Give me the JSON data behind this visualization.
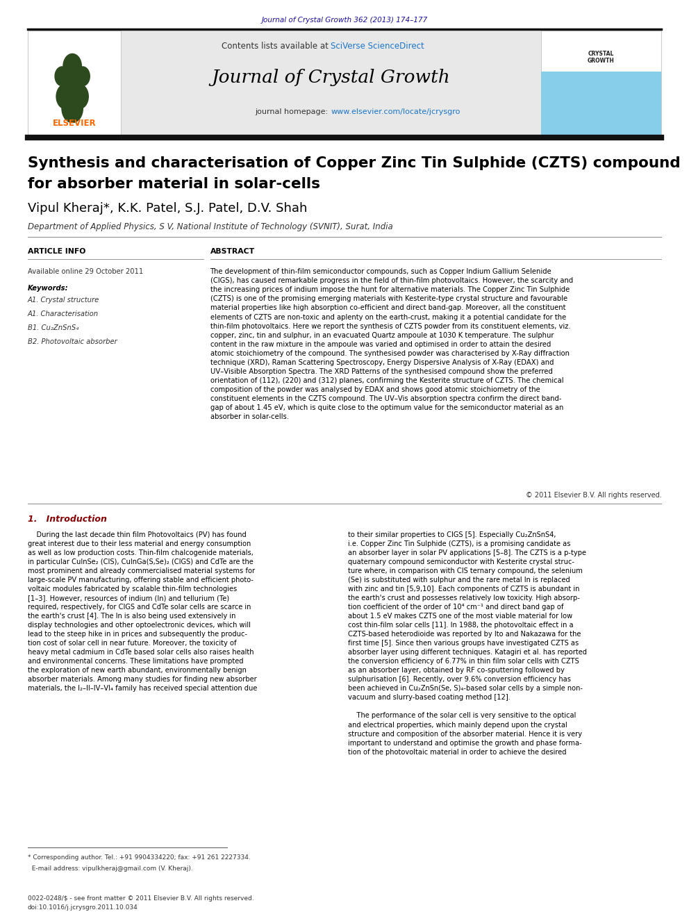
{
  "page_width": 9.92,
  "page_height": 13.23,
  "background_color": "#ffffff",
  "top_journal_ref": "Journal of Crystal Growth 362 (2013) 174–177",
  "top_journal_ref_color": "#1a0dab",
  "header_bg_color": "#e8e8e8",
  "contents_text": "Contents lists available at ",
  "sciverse_text": "SciVerse ScienceDirect",
  "sciverse_color": "#1a75cf",
  "journal_name": "Journal of Crystal Growth",
  "journal_homepage_label": "journal homepage: ",
  "journal_url": "www.elsevier.com/locate/jcrysgro",
  "journal_url_color": "#1a75cf",
  "elsevier_color": "#ff6600",
  "thick_bar_color": "#111111",
  "crystal_growth_sidebar_bg": "#87ceeb",
  "paper_title_line1": "Synthesis and characterisation of Copper Zinc Tin Sulphide (CZTS) compound",
  "paper_title_line2": "for absorber material in solar-cells",
  "paper_title_color": "#000000",
  "paper_title_fontsize": 15.5,
  "authors": "Vipul Kheraj*, K.K. Patel, S.J. Patel, D.V. Shah",
  "authors_fontsize": 13,
  "affiliation": "Department of Applied Physics, S V, National Institute of Technology (SVNIT), Surat, India",
  "affiliation_fontsize": 8.5,
  "article_info_header": "ARTICLE INFO",
  "abstract_header": "ABSTRACT",
  "available_online": "Available online 29 October 2011",
  "keywords_label": "Keywords:",
  "keywords": [
    "A1. Crystal structure",
    "A1. Characterisation",
    "B1. Cu₂ZnSnS₄",
    "B2. Photovoltaic absorber"
  ],
  "abstract_text": "The development of thin-film semiconductor compounds, such as Copper Indium Gallium Selenide\n(CIGS), has caused remarkable progress in the field of thin-film photovoltaics. However, the scarcity and\nthe increasing prices of indium impose the hunt for alternative materials. The Copper Zinc Tin Sulphide\n(CZTS) is one of the promising emerging materials with Kesterite-type crystal structure and favourable\nmaterial properties like high absorption co-efficient and direct band-gap. Moreover, all the constituent\nelements of CZTS are non-toxic and aplenty on the earth-crust, making it a potential candidate for the\nthin-film photovoltaics. Here we report the synthesis of CZTS powder from its constituent elements, viz.\ncopper, zinc, tin and sulphur, in an evacuated Quartz ampoule at 1030 K temperature. The sulphur\ncontent in the raw mixture in the ampoule was varied and optimised in order to attain the desired\natomic stoichiometry of the compound. The synthesised powder was characterised by X-Ray diffraction\ntechnique (XRD), Raman Scattering Spectroscopy, Energy Dispersive Analysis of X-Ray (EDAX) and\nUV–Visible Absorption Spectra. The XRD Patterns of the synthesised compound show the preferred\norientation of (112), (220) and (312) planes, confirming the Kesterite structure of CZTS. The chemical\ncomposition of the powder was analysed by EDAX and shows good atomic stoichiometry of the\nconstituent elements in the CZTS compound. The UV–Vis absorption spectra confirm the direct band-\ngap of about 1.45 eV, which is quite close to the optimum value for the semiconductor material as an\nabsorber in solar-cells.",
  "copyright_text": "© 2011 Elsevier B.V. All rights reserved.",
  "section1_header": "1.   Introduction",
  "section1_col1": "    During the last decade thin film Photovoltaics (PV) has found\ngreat interest due to their less material and energy consumption\nas well as low production costs. Thin-film chalcogenide materials,\nin particular CuInSe₂ (CIS), CuInGa(S,Se)₂ (CIGS) and CdTe are the\nmost prominent and already commercialised material systems for\nlarge-scale PV manufacturing, offering stable and efficient photo-\nvoltaic modules fabricated by scalable thin-film technologies\n[1–3]. However, resources of indium (In) and tellurium (Te)\nrequired, respectively, for CIGS and CdTe solar cells are scarce in\nthe earth's crust [4]. The In is also being used extensively in\ndisplay technologies and other optoelectronic devices, which will\nlead to the steep hike in in prices and subsequently the produc-\ntion cost of solar cell in near future. Moreover, the toxicity of\nheavy metal cadmium in CdTe based solar cells also raises health\nand environmental concerns. These limitations have prompted\nthe exploration of new earth abundant, environmentally benign\nabsorber materials. Among many studies for finding new absorber\nmaterials, the I₂–II–IV–VI₄ family has received special attention due",
  "section1_col2": "to their similar properties to CIGS [5]. Especially Cu₂ZnSnS4,\ni.e. Copper Zinc Tin Sulphide (CZTS), is a promising candidate as\nan absorber layer in solar PV applications [5–8]. The CZTS is a p-type\nquaternary compound semiconductor with Kesterite crystal struc-\nture where, in comparison with CIS ternary compound, the selenium\n(Se) is substituted with sulphur and the rare metal In is replaced\nwith zinc and tin [5,9,10]. Each components of CZTS is abundant in\nthe earth's crust and possesses relatively low toxicity. High absorp-\ntion coefficient of the order of 10⁴ cm⁻¹ and direct band gap of\nabout 1.5 eV makes CZTS one of the most viable material for low\ncost thin-film solar cells [11]. In 1988, the photovoltaic effect in a\nCZTS-based heterodioide was reported by Ito and Nakazawa for the\nfirst time [5]. Since then various groups have investigated CZTS as\nabsorber layer using different techniques. Katagiri et al. has reported\nthe conversion efficiency of 6.77% in thin film solar cells with CZTS\nas an absorber layer, obtained by RF co-sputtering followed by\nsulphurisation [6]. Recently, over 9.6% conversion efficiency has\nbeen achieved in Cu₂ZnSn(Se, S)₄-based solar cells by a simple non-\nvacuum and slurry-based coating method [12].\n\n    The performance of the solar cell is very sensitive to the optical\nand electrical properties, which mainly depend upon the crystal\nstructure and composition of the absorber material. Hence it is very\nimportant to understand and optimise the growth and phase forma-\ntion of the photovoltaic material in order to achieve the desired",
  "footnote_line1": "* Corresponding author. Tel.: +91 9904334220; fax: +91 261 2227334.",
  "footnote_line2": "  E-mail address: vipulkheraj@gmail.com (V. Kheraj).",
  "footer_line1": "0022-0248/$ - see front matter © 2011 Elsevier B.V. All rights reserved.",
  "footer_line2": "doi:10.1016/j.jcrysgro.2011.10.034"
}
